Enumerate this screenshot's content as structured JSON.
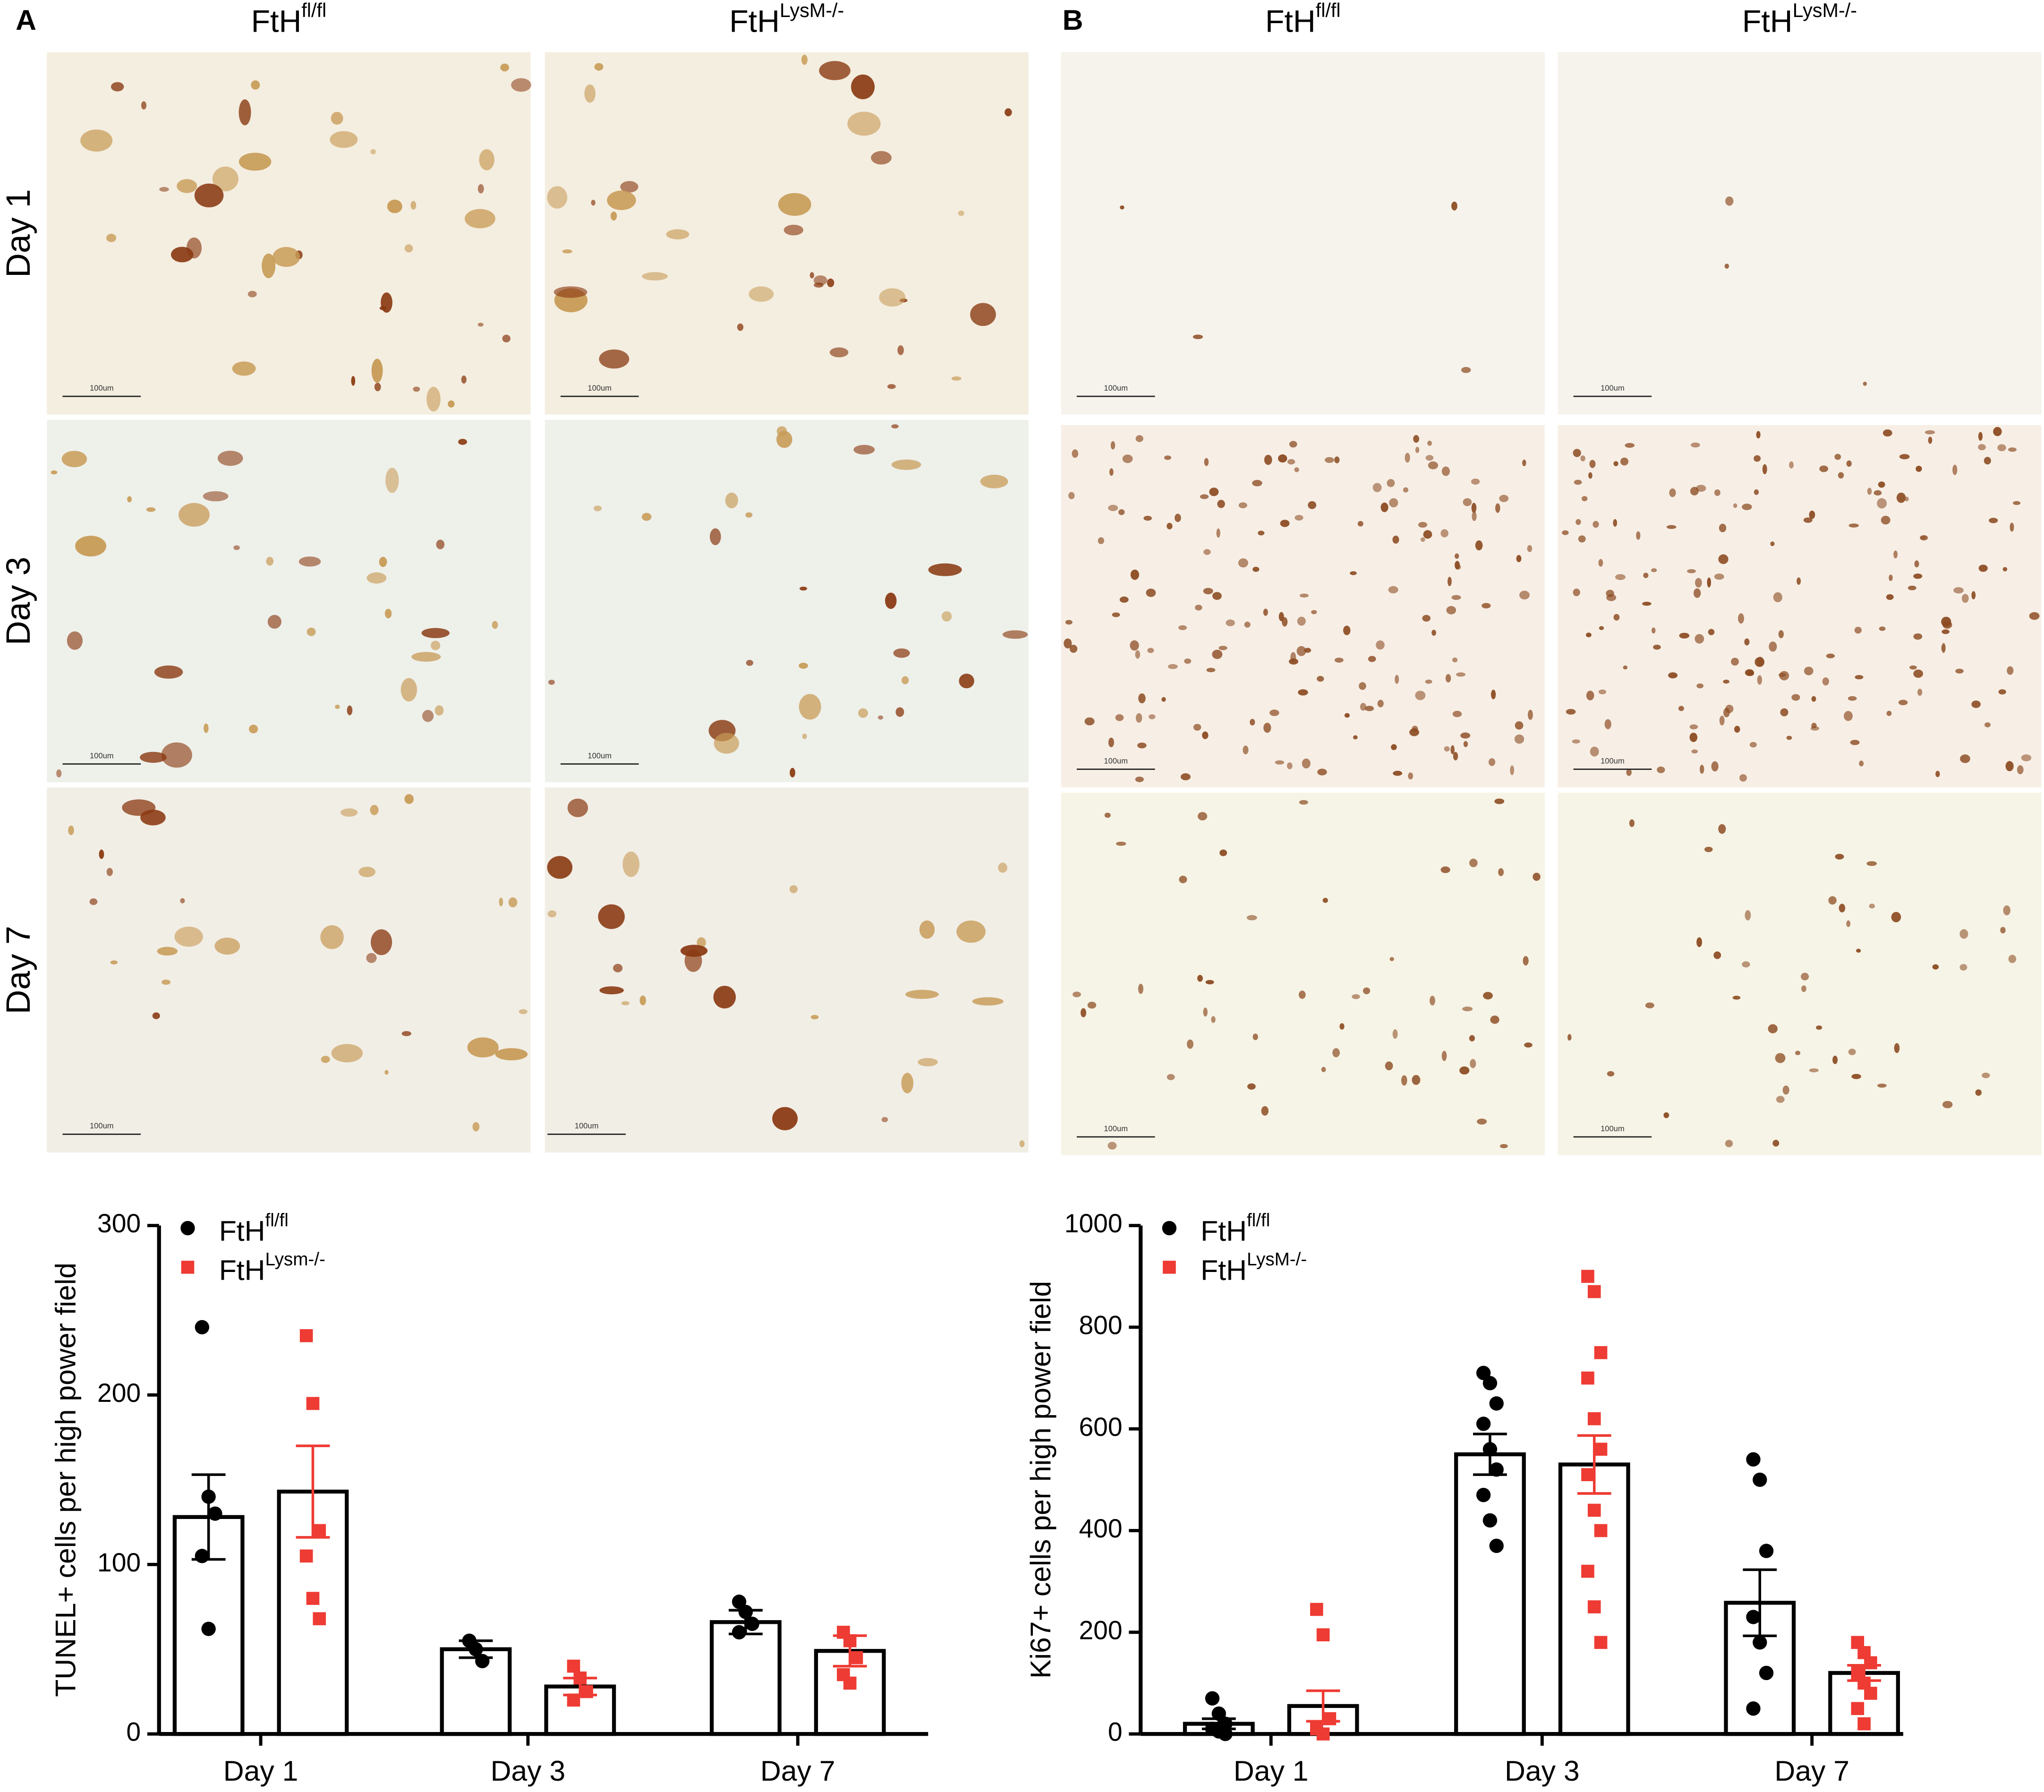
{
  "panels": [
    {
      "label": "A",
      "columns": [
        {
          "text": "FtH",
          "sup": "fl/fl"
        },
        {
          "text": "FtH",
          "sup": "LysM-/-"
        }
      ],
      "rows": [
        "Day 1",
        "Day 3",
        "Day 7"
      ],
      "scale_bar_label": "100um"
    },
    {
      "label": "B",
      "columns": [
        {
          "text": "FtH",
          "sup": "fl/fl"
        },
        {
          "text": "FtH",
          "sup": "LysM-/-"
        }
      ],
      "scale_bar_label": "100um"
    }
  ],
  "chart_data": [
    {
      "type": "bar",
      "ylabel": "TUNEL+ cells per high power field",
      "categories": [
        "Day 1",
        "Day 3",
        "Day 7"
      ],
      "ylim": [
        0,
        300
      ],
      "yticks": [
        0,
        100,
        200,
        300
      ],
      "series": [
        {
          "name": "FtH",
          "name_sup": "fl/fl",
          "color": "#000000",
          "values": [
            128,
            50,
            66
          ],
          "errors": [
            25,
            5,
            7
          ],
          "points": [
            [
              240,
              140,
              130,
              105,
              62
            ],
            [
              55,
              50,
              43
            ],
            [
              78,
              72,
              65,
              60
            ]
          ]
        },
        {
          "name": "FtH",
          "name_sup": "Lysm-/-",
          "color": "#ee3b33",
          "values": [
            143,
            28,
            49
          ],
          "errors": [
            27,
            5,
            9
          ],
          "points": [
            [
              235,
              195,
              120,
              105,
              80,
              68
            ],
            [
              40,
              33,
              25,
              20
            ],
            [
              60,
              55,
              45,
              35,
              30
            ]
          ]
        }
      ]
    },
    {
      "type": "bar",
      "ylabel": "Ki67+ cells per high power field",
      "categories": [
        "Day 1",
        "Day 3",
        "Day 7"
      ],
      "ylim": [
        0,
        1000
      ],
      "yticks": [
        0,
        200,
        400,
        600,
        800,
        1000
      ],
      "series": [
        {
          "name": "FtH",
          "name_sup": "fl/fl",
          "color": "#000000",
          "values": [
            20,
            550,
            258
          ],
          "errors": [
            10,
            40,
            65
          ],
          "points": [
            [
              70,
              40,
              20,
              10,
              5,
              0
            ],
            [
              710,
              690,
              650,
              610,
              560,
              520,
              470,
              420,
              370
            ],
            [
              540,
              500,
              360,
              230,
              180,
              120,
              50
            ]
          ]
        },
        {
          "name": "FtH",
          "name_sup": "LysM-/-",
          "color": "#ee3b33",
          "values": [
            55,
            530,
            120
          ],
          "errors": [
            30,
            57,
            15
          ],
          "points": [
            [
              245,
              195,
              30,
              10,
              0
            ],
            [
              900,
              870,
              750,
              700,
              620,
              560,
              510,
              440,
              400,
              320,
              250,
              180
            ],
            [
              180,
              160,
              140,
              120,
              100,
              80,
              50,
              20
            ]
          ]
        }
      ]
    }
  ]
}
